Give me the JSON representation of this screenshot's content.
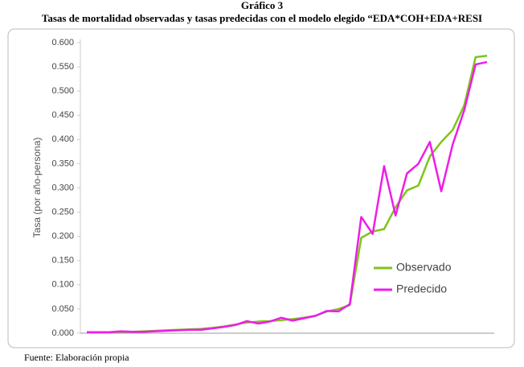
{
  "chart_data": {
    "type": "line",
    "title": "Gráfico 3",
    "subtitle": "Tasas de mortalidad observadas y tasas predecidas con el modelo elegido “EDA*COH+EDA+RESI",
    "y_label": "Tasa (por año-persona)",
    "source": "Fuente: Elaboración propia",
    "categories": [
      null,
      null,
      null,
      null,
      null,
      null,
      null,
      null,
      null,
      null,
      null,
      null,
      null,
      null,
      null,
      null,
      null,
      null,
      null,
      null,
      null,
      null,
      null,
      null,
      null,
      null,
      null,
      null,
      null,
      null,
      null,
      null,
      null,
      null,
      null,
      null
    ],
    "series": [
      {
        "name": "Observado",
        "color": "#7dc51a",
        "values": [
          0.002,
          0.002,
          0.002,
          0.003,
          0.003,
          0.004,
          0.005,
          0.006,
          0.007,
          0.008,
          0.009,
          0.011,
          0.014,
          0.018,
          0.022,
          0.024,
          0.025,
          0.027,
          0.029,
          0.032,
          0.036,
          0.045,
          0.05,
          0.058,
          0.197,
          0.21,
          0.215,
          0.26,
          0.295,
          0.305,
          0.365,
          0.395,
          0.42,
          0.47,
          0.57,
          0.573
        ]
      },
      {
        "name": "Predecido",
        "color": "#ee1ce8",
        "values": [
          0.002,
          0.002,
          0.002,
          0.004,
          0.003,
          0.003,
          0.004,
          0.005,
          0.006,
          0.007,
          0.007,
          0.01,
          0.013,
          0.017,
          0.025,
          0.02,
          0.024,
          0.032,
          0.026,
          0.031,
          0.036,
          0.046,
          0.045,
          0.06,
          0.24,
          0.205,
          0.345,
          0.243,
          0.33,
          0.35,
          0.395,
          0.293,
          0.39,
          0.46,
          0.555,
          0.56
        ]
      }
    ],
    "ylim": [
      0,
      0.6
    ],
    "yticks": [
      {
        "value": 0,
        "label": "0.000"
      },
      {
        "value": 0.05,
        "label": "0.050"
      },
      {
        "value": 0.1,
        "label": "0.100"
      },
      {
        "value": 0.15,
        "label": "0.150"
      },
      {
        "value": 0.2,
        "label": "0.200"
      },
      {
        "value": 0.25,
        "label": "0.250"
      },
      {
        "value": 0.3,
        "label": "0.300"
      },
      {
        "value": 0.35,
        "label": "0.350"
      },
      {
        "value": 0.4,
        "label": "0.400"
      },
      {
        "value": 0.45,
        "label": "0.450"
      },
      {
        "value": 0.5,
        "label": "0.500"
      },
      {
        "value": 0.55,
        "label": "0.550"
      },
      {
        "value": {
          "v": 0.6
        },
        "label": "0.600"
      }
    ],
    "grid": false
  }
}
